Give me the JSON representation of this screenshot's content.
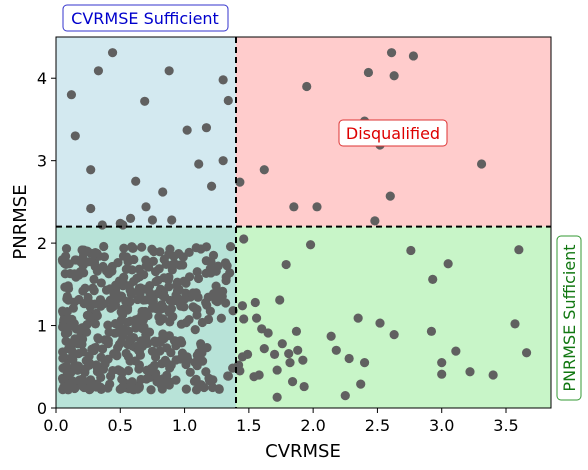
{
  "chart_data": {
    "type": "scatter",
    "title": "",
    "xlabel": "CVRMSE",
    "ylabel": "PNRMSE",
    "xlim": [
      0.0,
      3.85
    ],
    "ylim": [
      0.0,
      4.5
    ],
    "xticks": [
      0.0,
      0.5,
      1.0,
      1.5,
      2.0,
      2.5,
      3.0,
      3.5
    ],
    "xtick_labels": [
      "0.0",
      "0.5",
      "1.0",
      "1.5",
      "2.0",
      "2.5",
      "3.0",
      "3.5"
    ],
    "yticks": [
      0,
      1,
      2,
      3,
      4
    ],
    "ytick_labels": [
      "0",
      "1",
      "2",
      "3",
      "4"
    ],
    "grid": false,
    "thresholds": {
      "cvrmse": 1.4,
      "pnrmse": 2.2
    },
    "region_colors": {
      "cvrmse_sufficient": "#d3e9f0",
      "disqualified": "#ffcccc",
      "pnrmse_sufficient": "#c8f5c8",
      "both_sufficient": "#b8e3d8"
    },
    "annotations": {
      "cvrmse_sufficient": {
        "text": "CVRMSE Sufficient",
        "color": "#0000cc",
        "border": "#3333cc"
      },
      "disqualified": {
        "text": "Disqualified",
        "color": "#dd0000",
        "border": "#dd3333"
      },
      "pnrmse_sufficient": {
        "text": "PNRMSE Sufficient",
        "color": "#117711",
        "border": "#339933"
      }
    },
    "marker_color": "#606060",
    "series": [
      {
        "points": [
          [
            0.44,
            4.31
          ],
          [
            0.33,
            4.09
          ],
          [
            0.88,
            4.09
          ],
          [
            0.12,
            3.8
          ],
          [
            0.69,
            3.72
          ],
          [
            0.15,
            3.3
          ],
          [
            1.02,
            3.37
          ],
          [
            1.17,
            3.4
          ],
          [
            1.3,
            3.98
          ],
          [
            1.34,
            3.73
          ],
          [
            1.11,
            2.96
          ],
          [
            1.3,
            3.0
          ],
          [
            0.62,
            2.75
          ],
          [
            0.83,
            2.62
          ],
          [
            1.21,
            2.69
          ],
          [
            0.27,
            2.89
          ],
          [
            0.27,
            2.42
          ],
          [
            0.7,
            2.44
          ],
          [
            0.75,
            2.28
          ],
          [
            0.52,
            2.22
          ],
          [
            0.58,
            2.3
          ],
          [
            0.9,
            2.28
          ],
          [
            0.36,
            2.22
          ],
          [
            0.5,
            2.24
          ],
          [
            2.61,
            4.31
          ],
          [
            2.78,
            4.27
          ],
          [
            2.43,
            4.07
          ],
          [
            2.63,
            4.03
          ],
          [
            1.95,
            3.9
          ],
          [
            2.4,
            3.48
          ],
          [
            2.52,
            3.19
          ],
          [
            3.31,
            2.96
          ],
          [
            1.62,
            2.89
          ],
          [
            1.43,
            2.74
          ],
          [
            1.85,
            2.44
          ],
          [
            2.03,
            2.44
          ],
          [
            2.6,
            2.57
          ],
          [
            2.48,
            2.27
          ],
          [
            1.46,
            2.05
          ],
          [
            1.98,
            1.98
          ],
          [
            2.76,
            1.91
          ],
          [
            3.6,
            1.92
          ],
          [
            3.05,
            1.75
          ],
          [
            1.79,
            1.74
          ],
          [
            2.93,
            1.56
          ],
          [
            1.74,
            1.31
          ],
          [
            1.55,
            1.28
          ],
          [
            1.45,
            1.24
          ],
          [
            1.46,
            1.08
          ],
          [
            2.35,
            1.09
          ],
          [
            2.52,
            1.03
          ],
          [
            1.56,
            1.09
          ],
          [
            1.6,
            0.96
          ],
          [
            1.65,
            0.91
          ],
          [
            1.87,
            0.93
          ],
          [
            2.14,
            0.87
          ],
          [
            2.92,
            0.93
          ],
          [
            2.63,
            0.89
          ],
          [
            3.57,
            1.02
          ],
          [
            3.66,
            0.67
          ],
          [
            3.11,
            0.69
          ],
          [
            2.18,
            0.7
          ],
          [
            2.28,
            0.6
          ],
          [
            1.76,
            0.78
          ],
          [
            1.81,
            0.66
          ],
          [
            1.7,
            0.65
          ],
          [
            1.82,
            0.55
          ],
          [
            1.92,
            0.58
          ],
          [
            1.62,
            0.72
          ],
          [
            1.72,
            0.46
          ],
          [
            1.58,
            0.4
          ],
          [
            1.54,
            0.38
          ],
          [
            1.45,
            0.62
          ],
          [
            1.43,
            0.45
          ],
          [
            1.84,
            0.32
          ],
          [
            1.93,
            0.26
          ],
          [
            2.37,
            0.29
          ],
          [
            2.25,
            0.15
          ],
          [
            1.72,
            0.13
          ],
          [
            3.0,
            0.41
          ],
          [
            3.22,
            0.44
          ],
          [
            3.4,
            0.4
          ],
          [
            1.42,
            0.52
          ],
          [
            1.49,
            0.65
          ],
          [
            1.88,
            0.7
          ],
          [
            2.4,
            0.55
          ],
          [
            3.0,
            0.55
          ]
        ]
      }
    ]
  }
}
